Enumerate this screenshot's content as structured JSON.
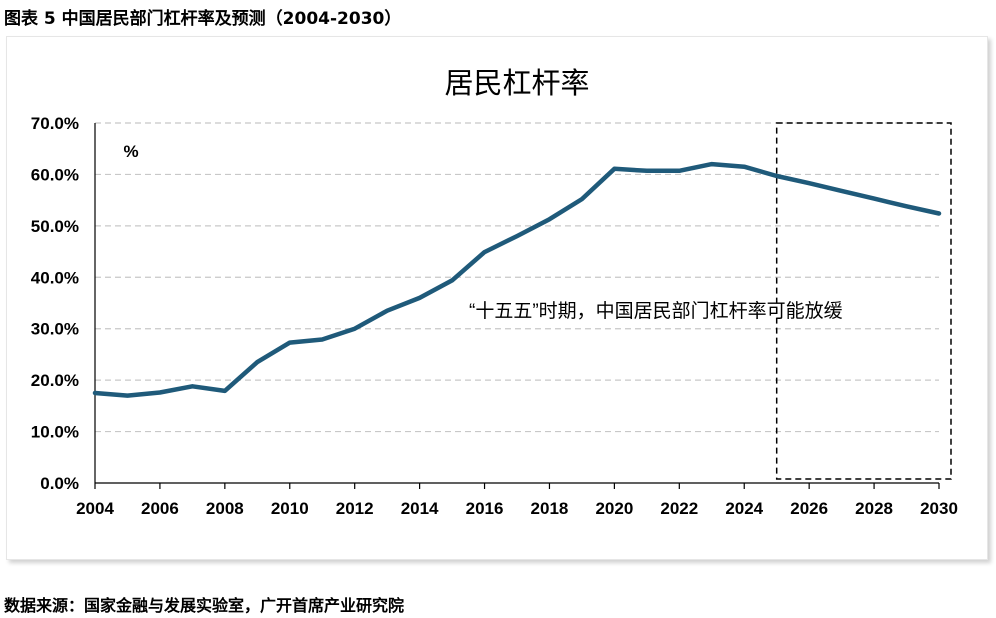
{
  "figure_caption": "图表 5 中国居民部门杠杆率及预测（2004-2030）",
  "source_note": "数据来源：国家金融与发展实验室，广开首席产业研究院",
  "colors": {
    "line": "#1f5a7a",
    "grid": "#c8c8c8",
    "axis": "#000000"
  },
  "chart_data": {
    "type": "line",
    "title": "居民杠杆率",
    "unit_label": "%",
    "xlabel": "",
    "ylabel": "",
    "ylim": [
      0,
      70
    ],
    "y_ticks": [
      "0.0%",
      "10.0%",
      "20.0%",
      "30.0%",
      "40.0%",
      "50.0%",
      "60.0%",
      "70.0%"
    ],
    "x_ticks": [
      "2004",
      "2006",
      "2008",
      "2010",
      "2012",
      "2014",
      "2016",
      "2018",
      "2020",
      "2022",
      "2024",
      "2026",
      "2028",
      "2030"
    ],
    "grid": "horizontal dashed",
    "series": [
      {
        "x": [
          2004,
          2005,
          2006,
          2007,
          2008,
          2009,
          2010,
          2011,
          2012,
          2013,
          2014,
          2015,
          2016,
          2017,
          2018,
          2019,
          2020,
          2021,
          2022,
          2023,
          2024,
          2025,
          2026,
          2027,
          2028,
          2029,
          2030
        ],
        "values": [
          17.5,
          17.0,
          17.6,
          18.8,
          17.9,
          23.5,
          27.3,
          27.9,
          30.0,
          33.5,
          36.0,
          39.4,
          44.9,
          48.0,
          51.3,
          55.2,
          61.1,
          60.7,
          60.7,
          62.0,
          61.5,
          59.7,
          58.3,
          56.8,
          55.3,
          53.8,
          52.4
        ]
      }
    ],
    "forecast_range": [
      2025,
      2030
    ],
    "annotation": "“十五五”时期，中国居民部门杠杆率可能放缓"
  }
}
